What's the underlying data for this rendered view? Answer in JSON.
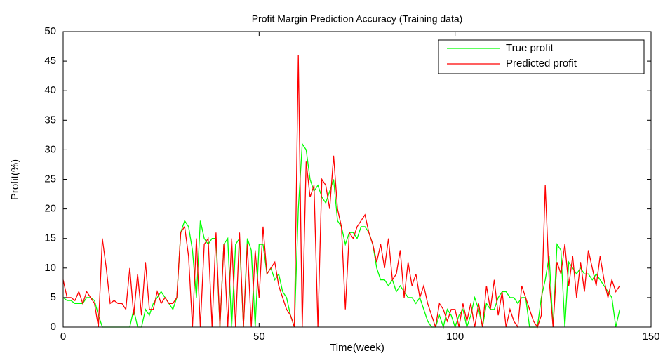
{
  "chart_data": {
    "type": "line",
    "title": "Profit Margin Prediction Accuracy (Training data)",
    "x_label": "Time(week)",
    "y_label": "Profit(%)",
    "x": [
      0,
      1,
      2,
      3,
      4,
      5,
      6,
      7,
      8,
      9,
      10,
      11,
      12,
      13,
      14,
      15,
      16,
      17,
      18,
      19,
      20,
      21,
      22,
      23,
      24,
      25,
      26,
      27,
      28,
      29,
      30,
      31,
      32,
      33,
      34,
      35,
      36,
      37,
      38,
      39,
      40,
      41,
      42,
      43,
      44,
      45,
      46,
      47,
      48,
      49,
      50,
      51,
      52,
      53,
      54,
      55,
      56,
      57,
      58,
      59,
      60,
      61,
      62,
      63,
      64,
      65,
      66,
      67,
      68,
      69,
      70,
      71,
      72,
      73,
      74,
      75,
      76,
      77,
      78,
      79,
      80,
      81,
      82,
      83,
      84,
      85,
      86,
      87,
      88,
      89,
      90,
      91,
      92,
      93,
      94,
      95,
      96,
      97,
      98,
      99,
      100,
      101,
      102,
      103,
      104,
      105,
      106,
      107,
      108,
      109,
      110,
      111,
      112,
      113,
      114,
      115,
      116,
      117,
      118,
      119,
      120,
      121,
      122,
      123,
      124,
      125,
      126,
      127,
      128,
      129,
      130,
      131,
      132,
      133,
      134,
      135,
      136,
      137,
      138,
      139,
      140,
      141,
      142
    ],
    "series": [
      {
        "name": "True profit",
        "color": "#00ff00",
        "values": [
          5,
          4.5,
          4.5,
          4,
          4,
          4,
          5,
          5,
          4.5,
          2,
          0,
          0,
          0,
          0,
          0,
          0,
          0,
          0,
          3,
          0,
          0,
          3,
          2,
          4,
          5,
          6,
          5,
          4,
          3,
          5,
          16,
          18,
          17,
          13,
          5,
          18,
          15,
          14,
          15,
          15,
          0,
          14,
          15,
          0,
          14,
          15,
          0,
          15,
          13,
          0,
          14,
          14,
          9,
          10,
          8,
          9,
          6,
          5,
          2,
          0,
          20,
          31,
          30,
          25,
          23,
          24,
          22,
          21,
          23,
          25,
          18,
          17,
          14,
          16,
          16,
          15,
          17,
          17,
          16,
          14,
          10,
          8,
          8,
          7,
          8,
          6,
          7,
          6,
          5,
          5,
          4,
          5,
          3,
          1,
          0,
          0,
          2,
          0,
          3,
          2,
          0,
          2,
          3,
          0,
          2,
          5,
          3,
          0,
          4,
          3,
          3,
          5,
          6,
          6,
          5,
          5,
          4,
          5,
          5,
          0,
          0,
          0,
          5,
          8,
          12,
          0,
          14,
          13,
          0,
          11,
          10,
          9,
          10,
          9,
          9,
          8,
          9,
          8,
          7,
          6,
          5,
          0,
          3
        ]
      },
      {
        "name": "Predicted profit",
        "color": "#ff0000",
        "values": [
          8,
          5,
          5,
          4.5,
          6,
          4,
          6,
          5,
          4,
          0,
          15,
          10,
          4,
          4.5,
          4,
          4,
          3,
          10,
          2,
          9,
          2,
          11,
          3,
          3,
          6,
          4,
          5,
          4,
          4,
          5,
          16,
          17,
          12,
          0,
          15,
          0,
          14,
          15,
          0,
          16,
          0,
          14,
          0,
          15,
          0,
          16,
          0,
          14,
          0,
          13,
          5,
          17,
          9,
          10,
          11,
          7,
          5,
          3,
          2,
          0,
          46,
          0,
          28,
          22,
          24,
          0,
          25,
          24,
          20,
          29,
          20,
          17,
          3,
          16,
          15,
          17,
          18,
          19,
          16,
          14,
          11,
          14,
          10,
          15,
          8,
          9,
          13,
          5,
          11,
          7,
          9,
          5,
          7,
          4,
          2,
          0,
          4,
          3,
          1,
          3,
          3,
          0,
          4,
          1,
          4,
          0,
          4,
          0,
          7,
          3,
          8,
          2,
          6,
          0,
          3,
          1,
          0,
          7,
          5,
          3,
          1,
          0,
          2,
          24,
          8,
          0,
          11,
          9,
          14,
          7,
          12,
          5,
          11,
          6,
          13,
          10,
          7,
          12,
          8,
          5,
          8,
          6,
          7
        ]
      }
    ],
    "xlim": [
      0,
      150
    ],
    "xticks": [
      0,
      50,
      100,
      150
    ],
    "ylim": [
      0,
      50
    ],
    "yticks": [
      0,
      5,
      10,
      15,
      20,
      25,
      30,
      35,
      40,
      45,
      50
    ],
    "grid": false,
    "legend": "upper right"
  }
}
